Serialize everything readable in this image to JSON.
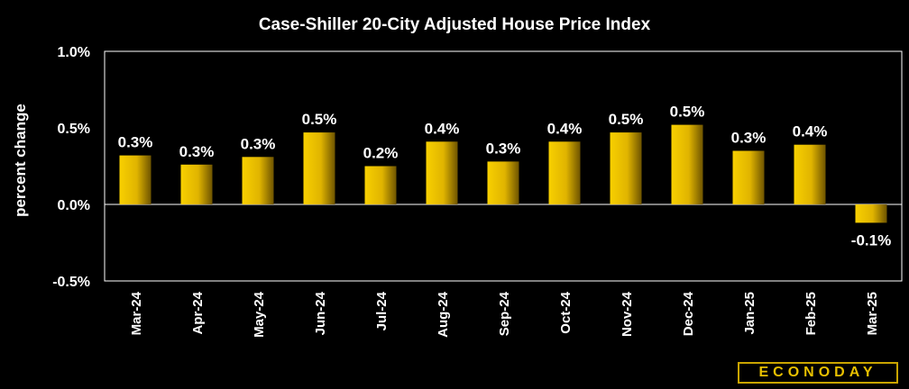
{
  "chart_data": {
    "type": "bar",
    "title": "Case-Shiller 20-City Adjusted House Price Index",
    "ylabel": "percent change",
    "xlabel": "",
    "categories": [
      "Mar-24",
      "Apr-24",
      "May-24",
      "Jun-24",
      "Jul-24",
      "Aug-24",
      "Sep-24",
      "Oct-24",
      "Nov-24",
      "Dec-24",
      "Jan-25",
      "Feb-25",
      "Mar-25"
    ],
    "values": [
      0.32,
      0.26,
      0.31,
      0.47,
      0.25,
      0.41,
      0.28,
      0.41,
      0.47,
      0.52,
      0.35,
      0.39,
      -0.12
    ],
    "data_labels": [
      "0.3%",
      "0.3%",
      "0.3%",
      "0.5%",
      "0.2%",
      "0.4%",
      "0.3%",
      "0.4%",
      "0.5%",
      "0.5%",
      "0.3%",
      "0.4%",
      "-0.1%"
    ],
    "yticks": [
      1.0,
      0.5,
      0.0,
      -0.5
    ],
    "ytick_labels": [
      "1.0%",
      "0.5%",
      "0.0%",
      "-0.5%"
    ],
    "ylim": [
      -0.5,
      1.0
    ],
    "grid": false,
    "legend": "none",
    "bar_color": "#f2c500",
    "bar_shade": "#7a5e00",
    "background": "#000000"
  },
  "logo_text": "ECONODAY"
}
